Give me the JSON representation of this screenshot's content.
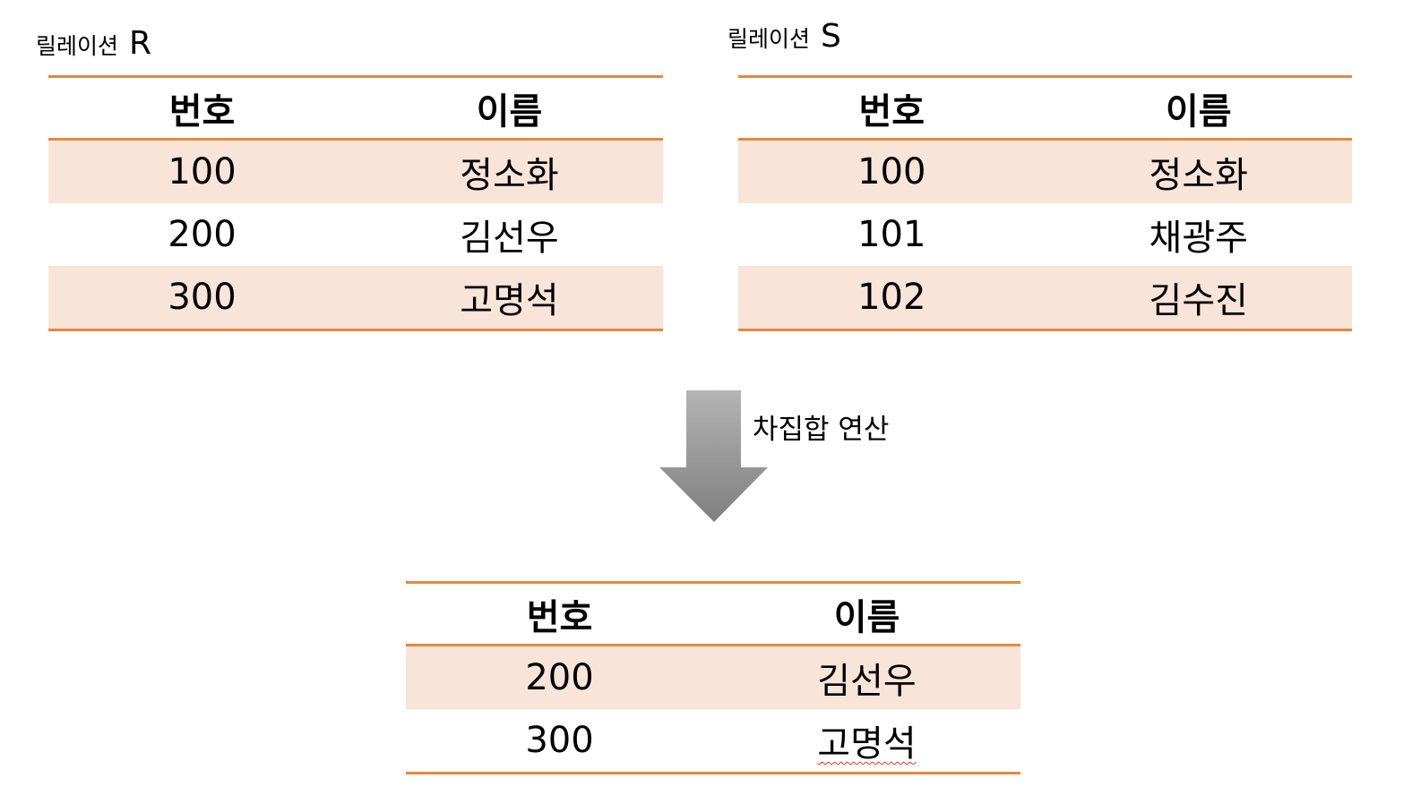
{
  "relation_r": {
    "caption": "릴레이션",
    "letter": "R",
    "headers": [
      "번호",
      "이름"
    ],
    "rows": [
      {
        "no": "100",
        "name": "정소화"
      },
      {
        "no": "200",
        "name": "김선우"
      },
      {
        "no": "300",
        "name": "고명석"
      }
    ]
  },
  "relation_s": {
    "caption": "릴레이션",
    "letter": "S",
    "headers": [
      "번호",
      "이름"
    ],
    "rows": [
      {
        "no": "100",
        "name": "정소화"
      },
      {
        "no": "101",
        "name": "채광주"
      },
      {
        "no": "102",
        "name": "김수진"
      }
    ]
  },
  "operation": {
    "label": "차집합 연산"
  },
  "result": {
    "headers": [
      "번호",
      "이름"
    ],
    "rows": [
      {
        "no": "200",
        "name": "김선우"
      },
      {
        "no": "300",
        "name": "고명석"
      }
    ]
  },
  "colors": {
    "rule": "#e8873e",
    "shaded_row": "#f8e4d8",
    "arrow_light": "#b4b4b4",
    "arrow_dark": "#7f7f7f"
  },
  "icons": {
    "arrow": "down-arrow-icon"
  }
}
